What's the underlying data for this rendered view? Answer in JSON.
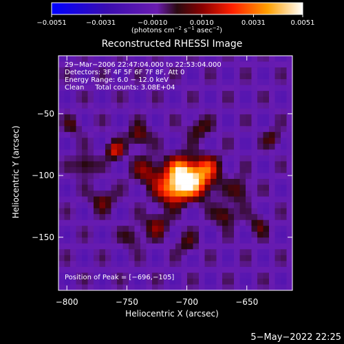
{
  "chart_data": {
    "type": "heatmap",
    "title": "Reconstructed RHESSI Image",
    "xlabel": "Heliocentric X (arcsec)",
    "ylabel": "Heliocentric Y (arcsec)",
    "xlim": [
      -807,
      -612
    ],
    "ylim": [
      -193,
      -3
    ],
    "x_ticks": [
      -800,
      -750,
      -700,
      -650
    ],
    "x_tick_labels": [
      "−800",
      "−750",
      "−700",
      "−650"
    ],
    "y_ticks": [
      -50,
      -100,
      -150
    ],
    "y_tick_labels": [
      "−50",
      "−100",
      "−150"
    ],
    "colorbar": {
      "range": [
        -0.0051,
        0.0051
      ],
      "ticks": [
        -0.0051,
        -0.0031,
        -0.001,
        0.001,
        0.0031,
        0.0051
      ],
      "tick_labels": [
        "−0.0051",
        "−0.0031",
        "−0.0010",
        "0.0010",
        "0.0031",
        "0.0051"
      ],
      "unit_text": "(photons cm",
      "unit_sup1": "−2",
      "unit_mid1": " s",
      "unit_sup2": "−1",
      "unit_mid2": " asec",
      "unit_sup3": "−2",
      "unit_close": ")"
    },
    "annotations": [
      "29−Mar−2006 22:47:04.000 to 22:53:04.000",
      "Detectors: 3F 4F 5F 6F 7F 8F, Att 0",
      "Energy Range: 6.0 − 12.0 keV",
      "Clean     Total counts: 3.08E+04"
    ],
    "peak_label": "Position of Peak = [−696,−105]",
    "peak": [
      -696,
      -105
    ],
    "sources": [
      {
        "x": -696,
        "y": -105,
        "amp": 0.0051,
        "sx": 12,
        "sy": 9
      },
      {
        "x": -712,
        "y": -112,
        "amp": 0.0038,
        "sx": 9,
        "sy": 8
      },
      {
        "x": -705,
        "y": -95,
        "amp": 0.0034,
        "sx": 8,
        "sy": 8
      },
      {
        "x": -683,
        "y": -93,
        "amp": 0.0024,
        "sx": 8,
        "sy": 7
      },
      {
        "x": -732,
        "y": -97,
        "amp": 0.0022,
        "sx": 9,
        "sy": 8
      },
      {
        "x": -760,
        "y": -80,
        "amp": 0.003,
        "sx": 5,
        "sy": 5
      },
      {
        "x": -740,
        "y": -68,
        "amp": 0.0022,
        "sx": 6,
        "sy": 6
      },
      {
        "x": -785,
        "y": -92,
        "amp": 0.002,
        "sx": 6,
        "sy": 6
      },
      {
        "x": -770,
        "y": -120,
        "amp": 0.0018,
        "sx": 7,
        "sy": 6
      },
      {
        "x": -725,
        "y": -140,
        "amp": 0.002,
        "sx": 7,
        "sy": 7
      },
      {
        "x": -668,
        "y": -132,
        "amp": 0.0022,
        "sx": 6,
        "sy": 6
      },
      {
        "x": -655,
        "y": -112,
        "amp": 0.0018,
        "sx": 6,
        "sy": 7
      },
      {
        "x": -640,
        "y": -140,
        "amp": 0.0016,
        "sx": 5,
        "sy": 6
      },
      {
        "x": -700,
        "y": -155,
        "amp": 0.0014,
        "sx": 6,
        "sy": 6
      },
      {
        "x": -745,
        "y": -150,
        "amp": 0.0014,
        "sx": 6,
        "sy": 6
      },
      {
        "x": -628,
        "y": -70,
        "amp": 0.0016,
        "sx": 5,
        "sy": 5
      },
      {
        "x": -690,
        "y": -62,
        "amp": 0.0016,
        "sx": 7,
        "sy": 6
      },
      {
        "x": -795,
        "y": -60,
        "amp": 0.0013,
        "sx": 5,
        "sy": 5
      }
    ]
  },
  "footer": {
    "date": "5−May−2022 22:25"
  }
}
